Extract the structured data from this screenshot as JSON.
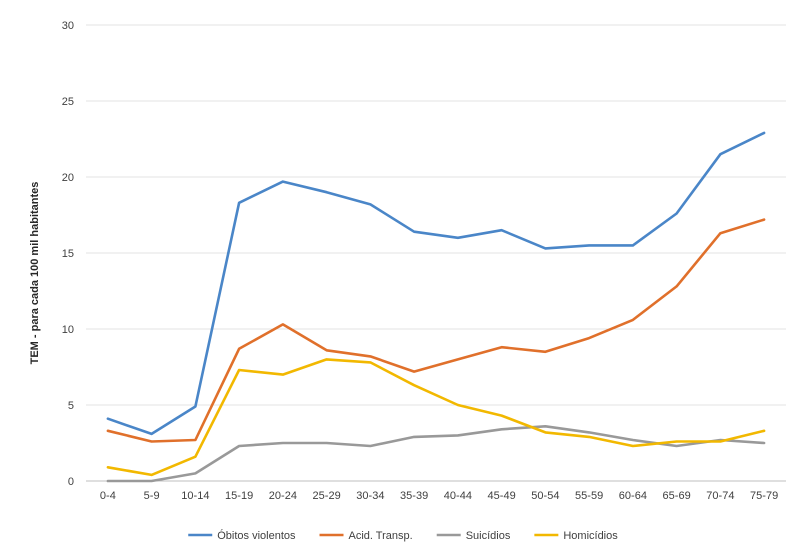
{
  "chart_data": {
    "type": "line",
    "title": "",
    "xlabel": "",
    "ylabel": "TEM - para cada 100 mil habitantes",
    "ylim": [
      0,
      30
    ],
    "yticks": [
      0,
      5,
      10,
      15,
      20,
      25,
      30
    ],
    "grid": true,
    "legend_position": "bottom",
    "categories": [
      "0-4",
      "5-9",
      "10-14",
      "15-19",
      "20-24",
      "25-29",
      "30-34",
      "35-39",
      "40-44",
      "45-49",
      "50-54",
      "55-59",
      "60-64",
      "65-69",
      "70-74",
      "75-79"
    ],
    "series": [
      {
        "name": "Óbitos violentos",
        "color": "#4a86c8",
        "values": [
          4.1,
          3.1,
          4.9,
          18.3,
          19.7,
          19.0,
          18.2,
          16.4,
          16.0,
          16.5,
          15.3,
          15.5,
          15.5,
          17.6,
          21.5,
          22.9
        ]
      },
      {
        "name": "Acid. Transp.",
        "color": "#e0702b",
        "values": [
          3.3,
          2.6,
          2.7,
          8.7,
          10.3,
          8.6,
          8.2,
          7.2,
          8.0,
          8.8,
          8.5,
          9.4,
          10.6,
          12.8,
          16.3,
          17.2
        ]
      },
      {
        "name": "Suicídios",
        "color": "#999999",
        "values": [
          0.0,
          0.0,
          0.5,
          2.3,
          2.5,
          2.5,
          2.3,
          2.9,
          3.0,
          3.4,
          3.6,
          3.2,
          2.7,
          2.3,
          2.7,
          2.5
        ]
      },
      {
        "name": "Homicídios",
        "color": "#f2b800",
        "values": [
          0.9,
          0.4,
          1.6,
          7.3,
          7.0,
          8.0,
          7.8,
          6.3,
          5.0,
          4.3,
          3.2,
          2.9,
          2.3,
          2.6,
          2.6,
          3.3
        ]
      }
    ]
  }
}
